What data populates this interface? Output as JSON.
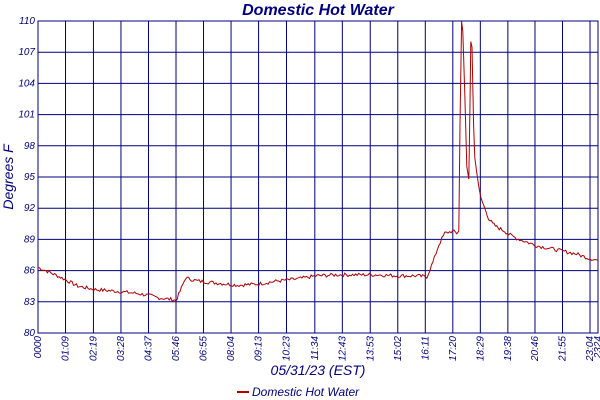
{
  "chart_data": {
    "type": "line",
    "title": "Domestic Hot Water",
    "xlabel": "05/31/23 (EST)",
    "ylabel": "Degrees F",
    "ylim": [
      80,
      110
    ],
    "y_ticks": [
      "80",
      "83",
      "86",
      "89",
      "92",
      "95",
      "98",
      "101",
      "104",
      "107",
      "110"
    ],
    "x_ticks": [
      "0000",
      "01:09",
      "02:19",
      "03:28",
      "04:37",
      "05:46",
      "06:55",
      "08:04",
      "09:13",
      "10:23",
      "11:34",
      "12:43",
      "13:53",
      "15:02",
      "16:11",
      "17:20",
      "18:29",
      "19:38",
      "20:46",
      "21:55",
      "23:04",
      "2324"
    ],
    "x_tick_minutes": [
      0,
      69,
      139,
      208,
      277,
      346,
      415,
      484,
      553,
      623,
      694,
      763,
      833,
      902,
      971,
      1040,
      1109,
      1178,
      1246,
      1315,
      1384,
      1404
    ],
    "x_range_minutes": [
      0,
      1404
    ],
    "grid": true,
    "legend_position": "bottom-center",
    "series": [
      {
        "name": "Domestic Hot Water",
        "color": "#b00000",
        "points_minutes": [
          0,
          20,
          60,
          100,
          140,
          200,
          250,
          280,
          300,
          340,
          346,
          356,
          370,
          400,
          450,
          500,
          550,
          600,
          650,
          700,
          750,
          800,
          850,
          900,
          950,
          975,
          990,
          1005,
          1020,
          1040,
          1050,
          1055,
          1058,
          1062,
          1065,
          1070,
          1075,
          1080,
          1083,
          1085,
          1088,
          1092,
          1095,
          1100,
          1105,
          1110,
          1120,
          1130,
          1140,
          1150,
          1160,
          1170,
          1180,
          1200,
          1250,
          1300,
          1350,
          1380,
          1404
        ],
        "values": [
          86.3,
          86.0,
          85.3,
          84.5,
          84.2,
          84.0,
          83.8,
          83.6,
          83.4,
          83.2,
          83.1,
          84.0,
          85.3,
          85.0,
          84.8,
          84.6,
          84.7,
          85.0,
          85.2,
          85.5,
          85.6,
          85.6,
          85.6,
          85.5,
          85.5,
          85.4,
          86.8,
          88.5,
          89.6,
          89.8,
          89.6,
          89.8,
          100.0,
          110.0,
          109.0,
          103.0,
          96.0,
          94.8,
          102.0,
          108.0,
          107.5,
          100.0,
          97.0,
          95.5,
          94.0,
          93.0,
          92.0,
          91.0,
          90.5,
          90.2,
          90.0,
          89.8,
          89.5,
          89.1,
          88.4,
          88.0,
          87.6,
          87.2,
          87.0
        ]
      }
    ]
  }
}
